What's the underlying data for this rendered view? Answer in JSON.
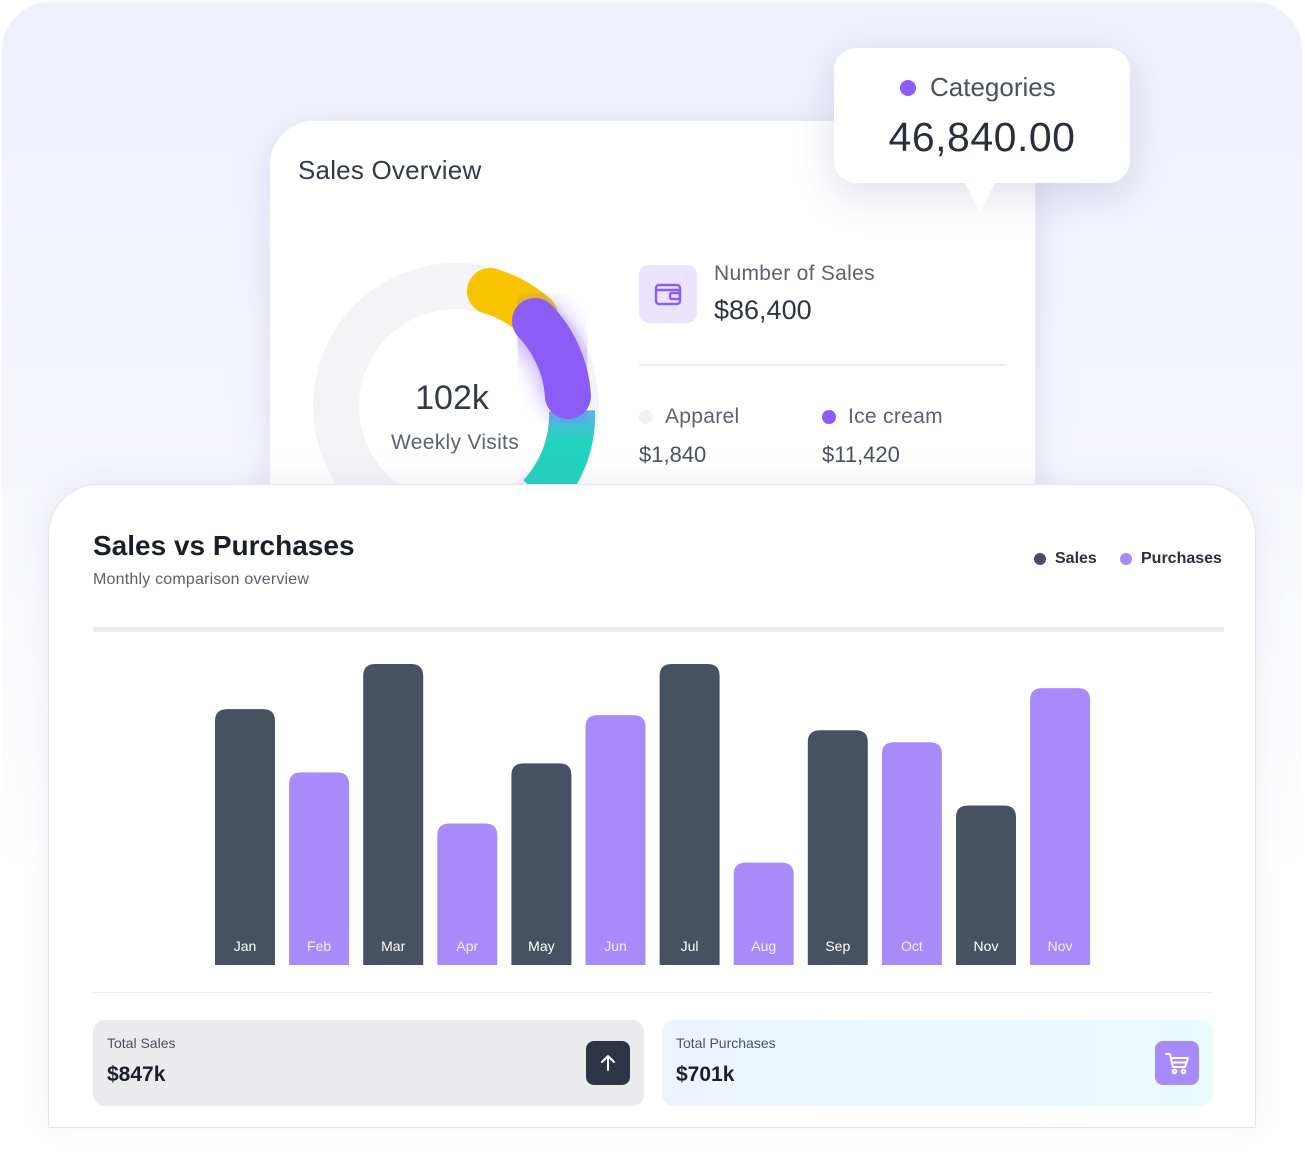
{
  "overview": {
    "title": "Sales Overview",
    "weekly_visits_value": "102k",
    "weekly_visits_label": "Weekly Visits",
    "number_of_sales_label": "Number of Sales",
    "number_of_sales_value": "$86,400",
    "sales_icon": "wallet-icon",
    "legend": [
      {
        "label": "Apparel",
        "value": "$1,840",
        "color": "#f1f1f4"
      },
      {
        "label": "Ice cream",
        "value": "$11,420",
        "color": "#8b5cf6"
      }
    ],
    "donut_colors": {
      "yellow": "#f8c400",
      "purple": "#8b5cf6",
      "teal": "#22d3bf"
    }
  },
  "tooltip": {
    "label": "Categories",
    "value": "46,840.00",
    "dot_color": "#8b5cf6"
  },
  "main": {
    "title": "Sales vs Purchases",
    "subtitle": "Monthly comparison overview",
    "legend": [
      {
        "label": "Sales",
        "color": "#475161"
      },
      {
        "label": "Purchases",
        "color": "#a78bfa"
      }
    ]
  },
  "chart_data": {
    "type": "bar",
    "categories": [
      "Jan",
      "Feb",
      "Mar",
      "Apr",
      "May",
      "Jun",
      "Jul",
      "Aug",
      "Sep",
      "Oct",
      "Nov",
      "Nov"
    ],
    "series_of_bar": [
      "Sales",
      "Purchases",
      "Sales",
      "Purchases",
      "Sales",
      "Purchases",
      "Sales",
      "Purchases",
      "Sales",
      "Purchases",
      "Sales",
      "Purchases"
    ],
    "values": [
      85,
      64,
      100,
      47,
      67,
      83,
      100,
      34,
      78,
      74,
      53,
      92
    ],
    "ylim": [
      0,
      100
    ],
    "grid": false,
    "legend_position": "top-right",
    "colors": {
      "Sales": "#475161",
      "Purchases": "#a78bfa"
    }
  },
  "stats": {
    "total_sales_label": "Total Sales",
    "total_sales_value": "$847k",
    "total_sales_icon": "arrow-up-icon",
    "total_purchases_label": "Total Purchases",
    "total_purchases_value": "$701k",
    "total_purchases_icon": "shopping-cart-icon"
  }
}
